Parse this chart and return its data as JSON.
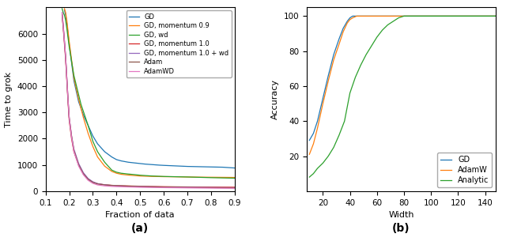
{
  "panel_a": {
    "title": "(a)",
    "xlabel": "Fraction of data",
    "ylabel": "Time to grok",
    "xlim": [
      0.1,
      0.9
    ],
    "ylim": [
      0,
      7000
    ],
    "yticks": [
      0,
      1000,
      2000,
      3000,
      4000,
      5000,
      6000
    ],
    "xticks": [
      0.1,
      0.2,
      0.3,
      0.4,
      0.5,
      0.6,
      0.7,
      0.8,
      0.9
    ],
    "series": {
      "GD": {
        "color": "#1f77b4",
        "x": [
          0.18,
          0.185,
          0.19,
          0.195,
          0.2,
          0.21,
          0.22,
          0.24,
          0.26,
          0.28,
          0.3,
          0.32,
          0.35,
          0.38,
          0.4,
          0.42,
          0.45,
          0.48,
          0.5,
          0.52,
          0.55,
          0.58,
          0.6,
          0.65,
          0.7,
          0.75,
          0.8,
          0.85,
          0.9
        ],
        "y": [
          6900,
          6700,
          6400,
          6000,
          5600,
          4900,
          4200,
          3400,
          2900,
          2500,
          2100,
          1800,
          1500,
          1300,
          1200,
          1150,
          1100,
          1070,
          1050,
          1030,
          1010,
          990,
          980,
          960,
          940,
          930,
          920,
          910,
          880
        ]
      },
      "GD, momentum 0.9": {
        "color": "#ff7f0e",
        "x": [
          0.18,
          0.185,
          0.19,
          0.195,
          0.2,
          0.21,
          0.22,
          0.24,
          0.26,
          0.28,
          0.3,
          0.32,
          0.35,
          0.38,
          0.4,
          0.42,
          0.45,
          0.48,
          0.5,
          0.55,
          0.6,
          0.65,
          0.7,
          0.75,
          0.8,
          0.85,
          0.9
        ],
        "y": [
          6950,
          6800,
          6500,
          6100,
          5700,
          5000,
          4300,
          3500,
          2800,
          2200,
          1700,
          1300,
          950,
          750,
          680,
          640,
          610,
          590,
          575,
          560,
          550,
          545,
          538,
          532,
          528,
          524,
          520
        ]
      },
      "GD, wd": {
        "color": "#2ca02c",
        "x": [
          0.17,
          0.175,
          0.18,
          0.185,
          0.19,
          0.2,
          0.22,
          0.25,
          0.28,
          0.3,
          0.32,
          0.35,
          0.38,
          0.4,
          0.42,
          0.45,
          0.48,
          0.5,
          0.55,
          0.6,
          0.65,
          0.7,
          0.75,
          0.8,
          0.85,
          0.9
        ],
        "y": [
          6950,
          6800,
          6700,
          6500,
          6200,
          5500,
          4400,
          3300,
          2500,
          1900,
          1500,
          1100,
          800,
          720,
          680,
          650,
          625,
          605,
          575,
          558,
          548,
          538,
          525,
          512,
          502,
          492
        ]
      },
      "GD, momentum 1.0": {
        "color": "#d62728",
        "x": [
          0.17,
          0.175,
          0.18,
          0.185,
          0.19,
          0.195,
          0.2,
          0.21,
          0.22,
          0.24,
          0.26,
          0.28,
          0.3,
          0.32,
          0.35,
          0.38,
          0.4,
          0.45,
          0.5,
          0.55,
          0.6,
          0.65,
          0.7,
          0.75,
          0.8,
          0.85,
          0.9
        ],
        "y": [
          6700,
          6200,
          5600,
          5000,
          4200,
          3400,
          2700,
          2000,
          1500,
          1000,
          650,
          450,
          340,
          280,
          240,
          220,
          210,
          195,
          185,
          175,
          168,
          162,
          158,
          155,
          152,
          150,
          148
        ]
      },
      "GD, momentum 1.0 + wd": {
        "color": "#9467bd",
        "x": [
          0.17,
          0.175,
          0.18,
          0.185,
          0.19,
          0.195,
          0.2,
          0.21,
          0.22,
          0.24,
          0.26,
          0.28,
          0.3,
          0.32,
          0.35,
          0.38,
          0.4,
          0.45,
          0.5,
          0.55,
          0.6,
          0.65,
          0.7,
          0.75,
          0.8,
          0.85,
          0.9
        ],
        "y": [
          6800,
          6300,
          5700,
          5100,
          4300,
          3500,
          2800,
          2100,
          1600,
          1050,
          700,
          480,
          355,
          285,
          240,
          215,
          200,
          185,
          170,
          162,
          156,
          150,
          145,
          140,
          136,
          132,
          128
        ]
      },
      "Adam": {
        "color": "#8c564b",
        "x": [
          0.17,
          0.175,
          0.18,
          0.185,
          0.19,
          0.195,
          0.2,
          0.21,
          0.22,
          0.24,
          0.26,
          0.28,
          0.3,
          0.32,
          0.35,
          0.38,
          0.4,
          0.45,
          0.5,
          0.55,
          0.6,
          0.65,
          0.7,
          0.75,
          0.8,
          0.85,
          0.9
        ],
        "y": [
          6750,
          6250,
          5700,
          5100,
          4300,
          3500,
          2800,
          2100,
          1550,
          1000,
          660,
          450,
          330,
          270,
          235,
          215,
          205,
          190,
          175,
          165,
          155,
          148,
          142,
          136,
          132,
          128,
          124
        ]
      },
      "AdamWD": {
        "color": "#e377c2",
        "x": [
          0.17,
          0.175,
          0.18,
          0.185,
          0.19,
          0.195,
          0.2,
          0.21,
          0.22,
          0.24,
          0.26,
          0.28,
          0.3,
          0.32,
          0.35,
          0.38,
          0.4,
          0.45,
          0.5,
          0.55,
          0.6,
          0.65,
          0.7,
          0.75,
          0.8,
          0.85,
          0.9
        ],
        "y": [
          6800,
          6300,
          5700,
          5100,
          4300,
          3500,
          2800,
          2050,
          1500,
          950,
          620,
          410,
          295,
          235,
          200,
          180,
          172,
          158,
          146,
          138,
          132,
          127,
          122,
          118,
          114,
          110,
          107
        ]
      }
    }
  },
  "panel_b": {
    "title": "(b)",
    "xlabel": "Width",
    "ylabel": "Accuracy",
    "xlim": [
      8,
      148
    ],
    "ylim": [
      0,
      105
    ],
    "yticks": [
      20,
      40,
      60,
      80,
      100
    ],
    "xticks": [
      20,
      40,
      60,
      80,
      100,
      120,
      140
    ],
    "series": {
      "GD": {
        "color": "#1f77b4",
        "x": [
          10,
          13,
          16,
          20,
          24,
          28,
          32,
          35,
          38,
          40,
          42,
          45,
          50,
          60,
          70,
          80,
          90,
          100,
          120,
          140,
          148
        ],
        "y": [
          29,
          33,
          40,
          53,
          66,
          78,
          87,
          93,
          97,
          99,
          100,
          100,
          100,
          100,
          100,
          100,
          100,
          100,
          100,
          100,
          100
        ]
      },
      "AdamW": {
        "color": "#ff7f0e",
        "x": [
          10,
          13,
          16,
          20,
          24,
          28,
          32,
          35,
          38,
          40,
          42,
          45,
          50,
          60,
          70,
          80,
          90,
          100,
          120,
          140,
          148
        ],
        "y": [
          21,
          27,
          36,
          50,
          63,
          75,
          84,
          91,
          96,
          98,
          99,
          100,
          100,
          100,
          100,
          100,
          100,
          100,
          100,
          100,
          100
        ]
      },
      "Analytic": {
        "color": "#2ca02c",
        "x": [
          10,
          13,
          16,
          20,
          24,
          28,
          32,
          36,
          40,
          44,
          48,
          52,
          56,
          60,
          64,
          68,
          72,
          76,
          80,
          85,
          90,
          100,
          120,
          140,
          148
        ],
        "y": [
          8,
          10,
          13,
          16,
          20,
          25,
          32,
          40,
          56,
          65,
          72,
          78,
          83,
          88,
          92,
          95,
          97,
          99,
          100,
          100,
          100,
          100,
          100,
          100,
          100
        ]
      }
    }
  }
}
